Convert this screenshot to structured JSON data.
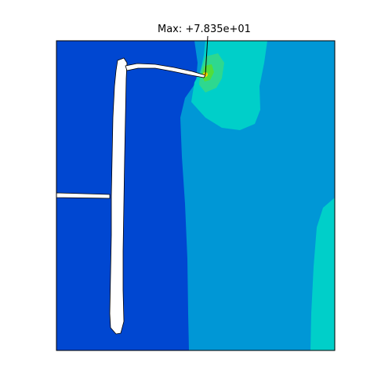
{
  "annotation": {
    "max_label": "Max: +7.835e+01"
  },
  "colors": {
    "background": "#ffffff",
    "band_low": "#0047d1",
    "band_1": "#0097d6",
    "band_2": "#00cfc9",
    "band_3": "#2ed88f",
    "band_4": "#52dd3a",
    "band_peak": "#ffd400",
    "crack": "#ffffff",
    "outline": "#000000"
  }
}
